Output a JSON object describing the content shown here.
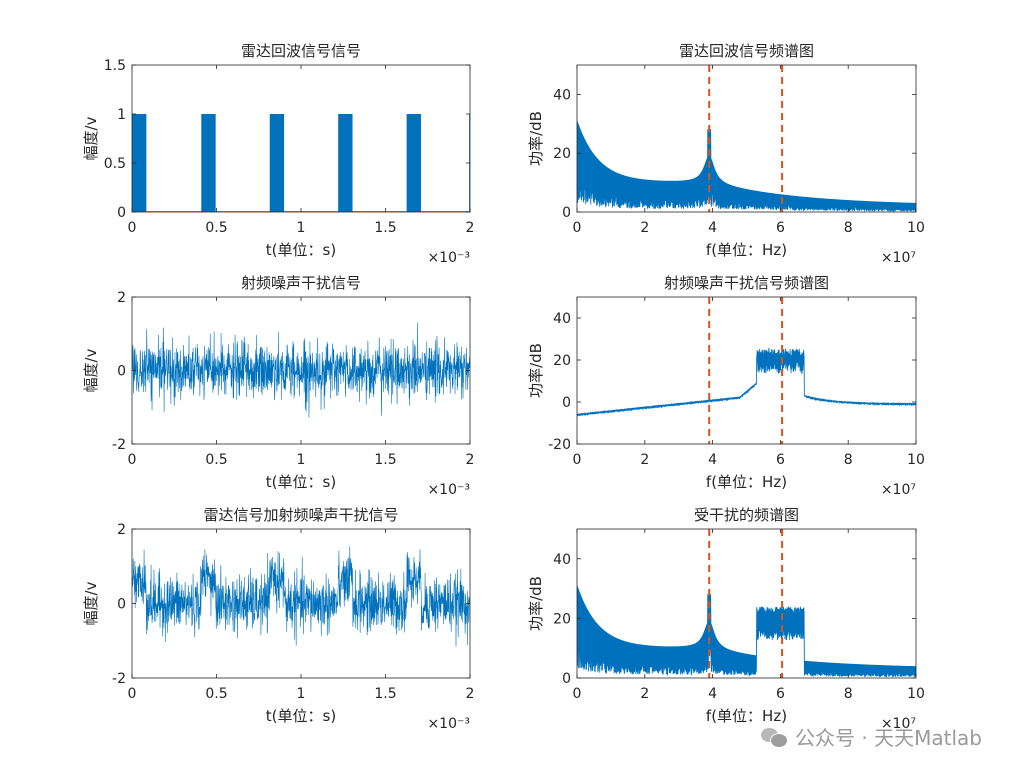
{
  "watermark": {
    "text": "公众号 · 天天Matlab",
    "icon": "wechat-icon"
  },
  "chart_data": [
    {
      "type": "line",
      "title": "雷达回波信号信号",
      "xlabel": "t(单位：s)",
      "ylabel": "幅度/v",
      "xlim": [
        0,
        2
      ],
      "ylim": [
        0,
        1.5
      ],
      "xticks": [
        0,
        0.5,
        1,
        1.5,
        2
      ],
      "xtick_labels": [
        "0",
        "0.5",
        "1",
        "1.5",
        "2"
      ],
      "yticks": [
        0,
        0.5,
        1,
        1.5
      ],
      "ytick_labels": [
        "0",
        "0.5",
        "1",
        "1.5"
      ],
      "x_exponent": "×10⁻³",
      "color": "#0072BD",
      "signal": "pulse",
      "pulses": [
        {
          "start": 0.0,
          "end": 0.085
        },
        {
          "start": 0.41,
          "end": 0.495
        },
        {
          "start": 0.815,
          "end": 0.9
        },
        {
          "start": 1.22,
          "end": 1.305
        },
        {
          "start": 1.625,
          "end": 1.71
        },
        {
          "start": 1.995,
          "end": 2.0
        }
      ],
      "high": 1,
      "low": 0
    },
    {
      "type": "line",
      "title": "雷达回波信号频谱图",
      "xlabel": "f(单位：Hz)",
      "ylabel": "功率/dB",
      "xlim": [
        0,
        10
      ],
      "ylim": [
        0,
        50
      ],
      "xticks": [
        0,
        2,
        4,
        6,
        8,
        10
      ],
      "xtick_labels": [
        "0",
        "2",
        "4",
        "6",
        "8",
        "10"
      ],
      "yticks": [
        0,
        20,
        40
      ],
      "ytick_labels": [
        "0",
        "20",
        "40"
      ],
      "x_exponent": "×10⁷",
      "color": "#0072BD",
      "marker_lines": [
        3.9,
        6.05
      ],
      "marker_color": "#D95319",
      "signal": "echo-spectrum",
      "peak_x": 3.9,
      "peak_y": 28,
      "start_y": 31,
      "valley_y": 10,
      "end_y": 2
    },
    {
      "type": "line",
      "title": "射频噪声干扰信号",
      "xlabel": "t(单位：s)",
      "ylabel": "幅度/v",
      "xlim": [
        0,
        2
      ],
      "ylim": [
        -2,
        2
      ],
      "xticks": [
        0,
        0.5,
        1,
        1.5,
        2
      ],
      "xtick_labels": [
        "0",
        "0.5",
        "1",
        "1.5",
        "2"
      ],
      "yticks": [
        -2,
        0,
        2
      ],
      "ytick_labels": [
        "-2",
        "0",
        "2"
      ],
      "x_exponent": "×10⁻³",
      "color": "#0072BD",
      "signal": "noise",
      "noise_sigma": 0.38,
      "noise_max": 1.3
    },
    {
      "type": "line",
      "title": "射频噪声干扰信号频谱图",
      "xlabel": "f(单位：Hz)",
      "ylabel": "功率/dB",
      "xlim": [
        0,
        10
      ],
      "ylim": [
        -20,
        50
      ],
      "xticks": [
        0,
        2,
        4,
        6,
        8,
        10
      ],
      "xtick_labels": [
        "0",
        "2",
        "4",
        "6",
        "8",
        "10"
      ],
      "yticks": [
        -20,
        0,
        20,
        40
      ],
      "ytick_labels": [
        "-20",
        "0",
        "20",
        "40"
      ],
      "x_exponent": "×10⁷",
      "color": "#0072BD",
      "marker_lines": [
        3.9,
        6.05
      ],
      "marker_color": "#D95319",
      "signal": "jam-spectrum",
      "base_start": -6,
      "band_start": 5.3,
      "band_end": 6.7,
      "band_level": 21,
      "base_end": -1
    },
    {
      "type": "line",
      "title": "雷达信号加射频噪声干扰信号",
      "xlabel": "t(单位：s)",
      "ylabel": "幅度/v",
      "xlim": [
        0,
        2
      ],
      "ylim": [
        -2,
        2
      ],
      "xticks": [
        0,
        0.5,
        1,
        1.5,
        2
      ],
      "xtick_labels": [
        "0",
        "0.5",
        "1",
        "1.5",
        "2"
      ],
      "yticks": [
        -2,
        0,
        2
      ],
      "ytick_labels": [
        "-2",
        "0",
        "2"
      ],
      "x_exponent": "×10⁻³",
      "color": "#0072BD",
      "signal": "noise-plus-pulse",
      "noise_sigma": 0.38,
      "noise_max": 1.4,
      "pulses": [
        {
          "start": 0.0,
          "end": 0.085
        },
        {
          "start": 0.41,
          "end": 0.495
        },
        {
          "start": 0.815,
          "end": 0.9
        },
        {
          "start": 1.22,
          "end": 1.305
        },
        {
          "start": 1.625,
          "end": 1.71
        }
      ],
      "pulse_offset": 0.8
    },
    {
      "type": "line",
      "title": "受干扰的频谱图",
      "xlabel": "f(单位：Hz)",
      "ylabel": "功率/dB",
      "xlim": [
        0,
        10
      ],
      "ylim": [
        0,
        50
      ],
      "xticks": [
        0,
        2,
        4,
        6,
        8,
        10
      ],
      "xtick_labels": [
        "0",
        "2",
        "4",
        "6",
        "8",
        "10"
      ],
      "yticks": [
        0,
        20,
        40
      ],
      "ytick_labels": [
        "0",
        "20",
        "40"
      ],
      "x_exponent": "×10⁷",
      "color": "#0072BD",
      "marker_lines": [
        3.9,
        6.05
      ],
      "marker_color": "#D95319",
      "signal": "combined-spectrum",
      "peak_x": 3.9,
      "peak_y": 28,
      "start_y": 31,
      "valley_y": 10,
      "end_y": 3,
      "band_start": 5.3,
      "band_end": 6.7,
      "band_level": 21
    }
  ]
}
